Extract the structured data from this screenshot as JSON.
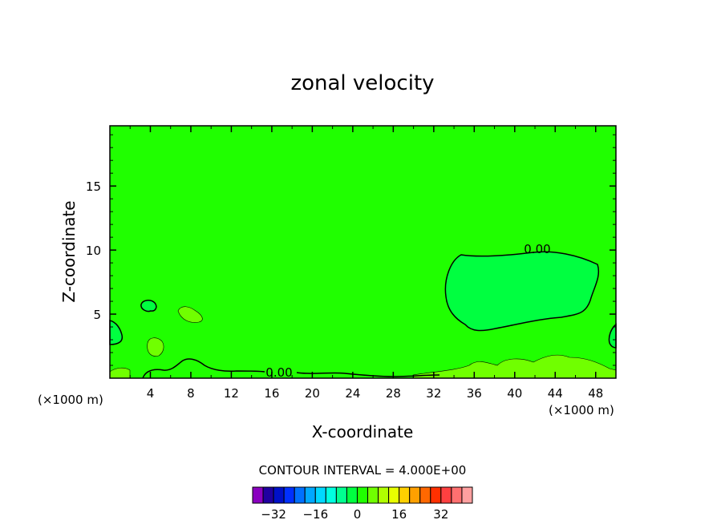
{
  "chart_data": {
    "type": "heatmap",
    "title": "zonal velocity",
    "xlabel": "X-coordinate",
    "ylabel": "Z-coordinate",
    "x_units": "(×1000 m)",
    "x_units_right": "(×1000 m)",
    "xlim": [
      0,
      50
    ],
    "ylim": [
      0,
      19.7
    ],
    "x_ticks": [
      "4",
      "8",
      "12",
      "16",
      "20",
      "24",
      "28",
      "32",
      "36",
      "40",
      "44",
      "48"
    ],
    "y_ticks": [
      "5",
      "10",
      "15"
    ],
    "contour_labels": [
      "0.00",
      "0.00"
    ],
    "contour_interval_text": "CONTOUR INTERVAL = 4.000E+00",
    "colorbar": {
      "tick_labels": [
        "-32",
        "-16",
        "0",
        "16",
        "32"
      ],
      "colors": [
        "#8a00c0",
        "#2000a0",
        "#0010c8",
        "#0030ff",
        "#0070ff",
        "#00a8ff",
        "#00d8ff",
        "#00ffe0",
        "#00ff90",
        "#00ff40",
        "#20ff00",
        "#70ff00",
        "#b0ff00",
        "#e8ff00",
        "#ffd000",
        "#ffa000",
        "#ff6800",
        "#ff3000",
        "#ff4040",
        "#ff7070",
        "#ffa0a0"
      ]
    },
    "field": {
      "background": "#20ff00",
      "negative_region": "#00ff40",
      "positive_patch": "#70ff00"
    }
  }
}
